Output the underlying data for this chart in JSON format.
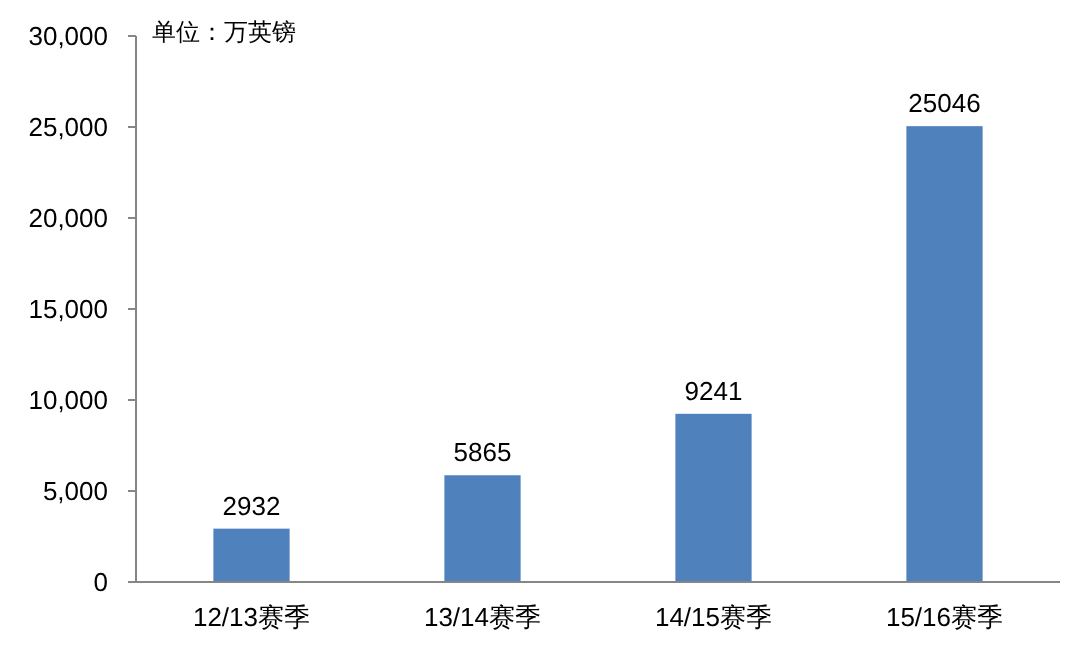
{
  "chart_data": {
    "type": "bar",
    "categories": [
      "12/13赛季",
      "13/14赛季",
      "14/15赛季",
      "15/16赛季"
    ],
    "series": [
      {
        "color": "#4f81bd",
        "values": [
          2932,
          5865,
          9241,
          25046
        ]
      }
    ],
    "ylim": [
      0,
      30000
    ],
    "yticks": [
      0,
      {
        "value": 5000,
        "label": "5,000"
      },
      {
        "value": 10000,
        "label": "10,000"
      },
      {
        "value": 15000,
        "label": "15,000"
      },
      {
        "value": 20000,
        "label": "20,000"
      },
      {
        "value": 25000,
        "label": "25,000"
      },
      {
        "value": 30000,
        "label": "30,000"
      }
    ],
    "annotations": [
      "单位：万英镑"
    ],
    "data_labels": true,
    "grid": false
  }
}
